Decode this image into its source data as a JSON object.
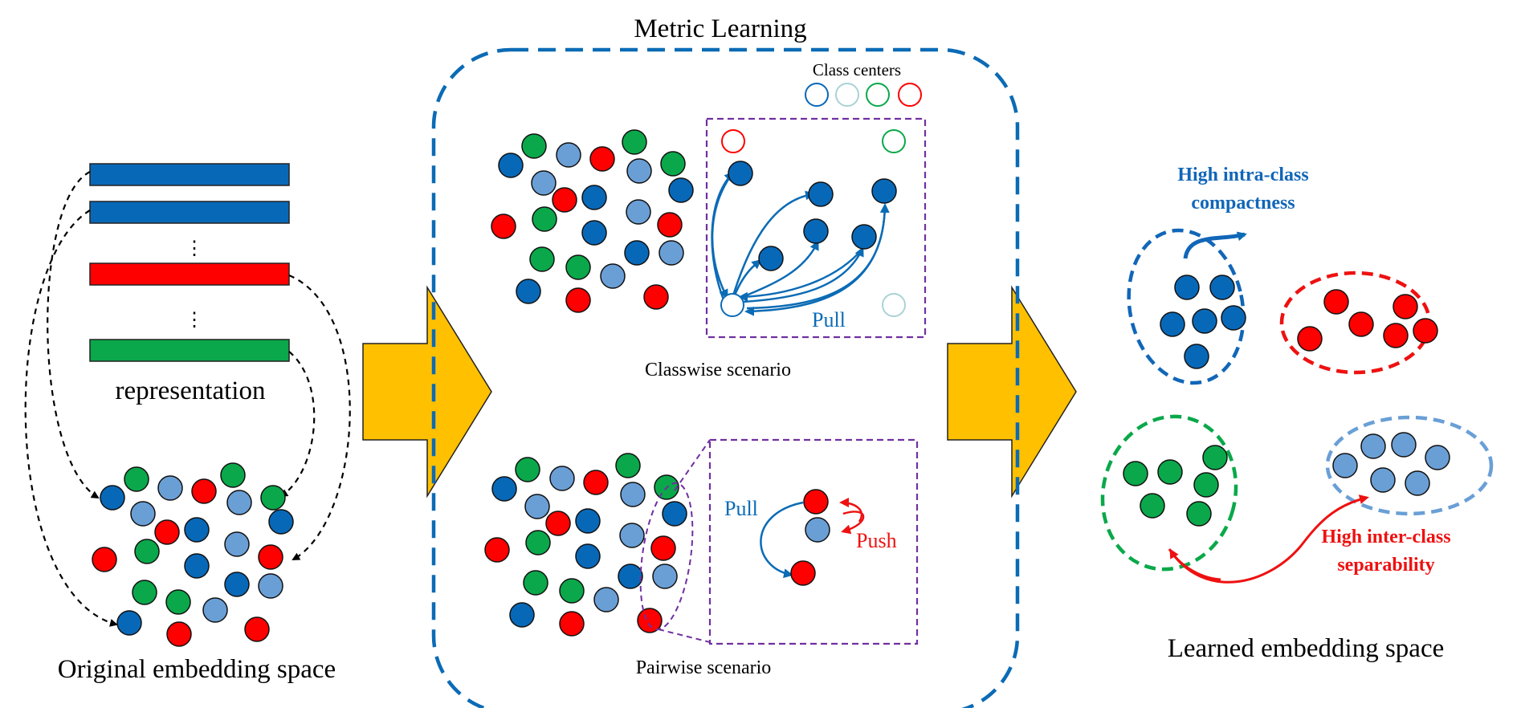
{
  "title": "Metric Learning",
  "left_panel": {
    "representation_label": "representation",
    "ellipsis": "⋮",
    "caption": "Original embedding space"
  },
  "middle_panel": {
    "class_centers_label": "Class centers",
    "classwise_caption": "Classwise scenario",
    "pairwise_caption": "Pairwise scenario",
    "pull_label": "Pull",
    "push_label": "Push"
  },
  "right_panel": {
    "caption": "Learned embedding space",
    "compactness_line1": "High intra-class",
    "compactness_line2": "compactness",
    "separability_line1": "High inter-class",
    "separability_line2": "separability"
  },
  "colors": {
    "dark_blue": "#0868b8",
    "light_blue": "#6a9fd6",
    "green": "#0aa84a",
    "red": "#ff0000",
    "light_cyan": "#a9d3d6",
    "arrow_yellow": "#ffc000",
    "frame_blue": "#0b6bb5",
    "frame_purple": "#7030a0",
    "compact_blue": "#1166b8",
    "separ_red": "#ee1111"
  }
}
